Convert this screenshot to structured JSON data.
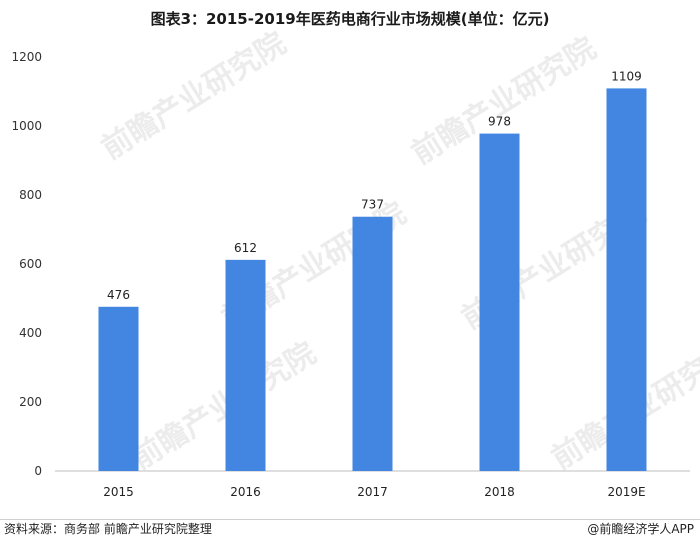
{
  "title": "图表3：2015-2019年医药电商行业市场规模(单位：亿元)",
  "source": "资料来源：商务部 前瞻产业研究院整理",
  "credit": "@前瞻经济学人APP",
  "watermark_text": "前瞻产业研究院",
  "colors": {
    "bar": "#4286e2",
    "axis": "#bfbfbf",
    "grid": "#e6e6e6"
  },
  "chart_data": {
    "type": "bar",
    "categories": [
      "2015",
      "2016",
      "2017",
      "2018",
      "2019E"
    ],
    "values": [
      476,
      612,
      737,
      978,
      1109
    ],
    "data_labels": [
      "476",
      "612",
      "737",
      "978",
      "1109"
    ],
    "ylim": [
      0,
      1200
    ],
    "yticks": [
      0,
      200,
      400,
      600,
      800,
      1000,
      1200
    ],
    "grid": false,
    "legend": "none"
  }
}
